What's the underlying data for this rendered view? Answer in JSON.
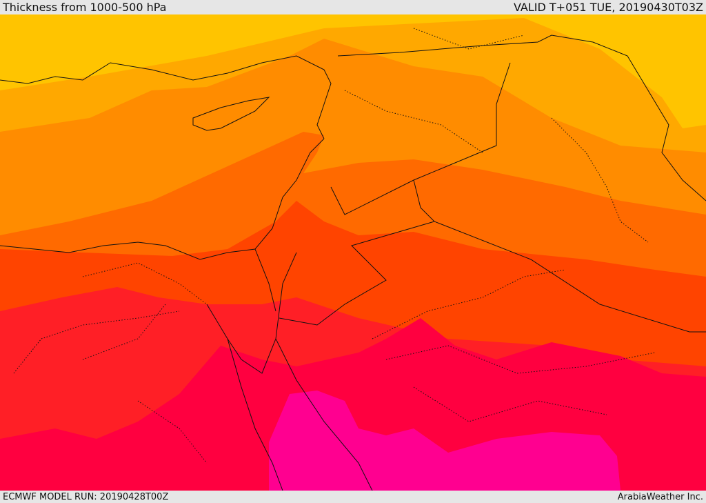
{
  "header": {
    "title": "Thickness from 1000-500 hPa",
    "valid_time": "VALID T+051 TUE, 20190430T03Z"
  },
  "footer": {
    "model_run": "ECMWF MODEL RUN: 20190428T00Z",
    "credit": "ArabiaWeather Inc."
  },
  "map": {
    "colors": {
      "band_1": "#ffc400",
      "band_2": "#ffa800",
      "band_3": "#ff8c00",
      "band_4": "#ff6a00",
      "band_5": "#ff4400",
      "band_6": "#ff1f26",
      "band_7": "#ff0040",
      "band_8": "#ff0090",
      "coastline": "#111111"
    }
  }
}
